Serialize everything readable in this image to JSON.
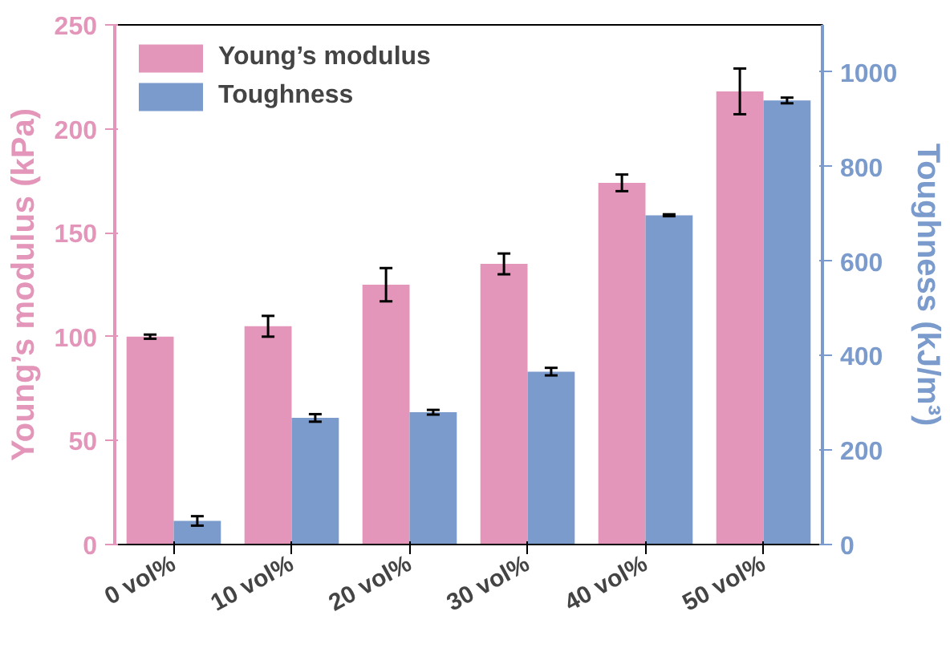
{
  "chart_data": {
    "type": "bar",
    "ylabel": "Young’s modulus (kPa)",
    "y2label": "Toughness (kJ/m³)",
    "categories": [
      "0 vol%",
      "10 vol%",
      "20 vol%",
      "30 vol%",
      "40 vol%",
      "50 vol%"
    ],
    "series": [
      {
        "name": "Young’s modulus",
        "color": "#e396b9",
        "values": [
          100,
          105,
          125,
          135,
          174,
          218
        ],
        "errors": [
          1,
          5,
          8,
          5,
          4,
          11
        ]
      },
      {
        "name": "Toughness",
        "color": "#7b9bcc",
        "axis": "y2",
        "values": [
          50,
          268,
          280,
          366,
          697,
          940
        ],
        "errors": [
          10,
          8,
          5,
          8,
          2,
          6
        ]
      }
    ],
    "ylim": [
      0,
      250
    ],
    "yticks": [
      0,
      50,
      100,
      150,
      200,
      250
    ],
    "y2lim": [
      0,
      1100
    ],
    "y2ticks": [
      0,
      200,
      400,
      600,
      800,
      1000
    ],
    "grid": false,
    "legend": "top left"
  }
}
